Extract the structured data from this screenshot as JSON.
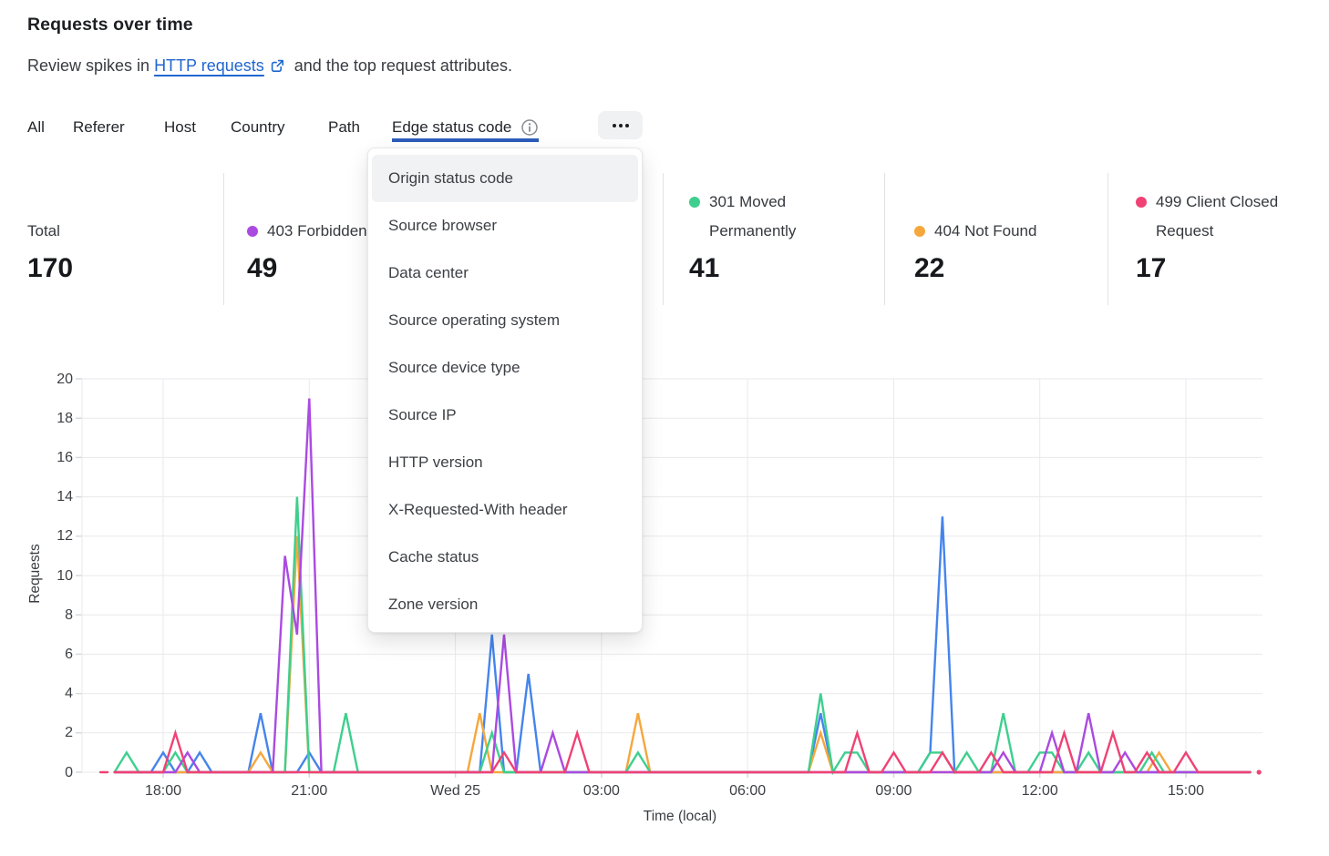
{
  "header": {
    "title": "Requests over time",
    "subtitle_prefix": "Review spikes in ",
    "subtitle_link": "HTTP requests",
    "subtitle_suffix": " and the top request attributes.",
    "link_color": "#2166cf"
  },
  "tabs": {
    "items": [
      {
        "label": "All",
        "active": false
      },
      {
        "label": "Referer",
        "active": false
      },
      {
        "label": "Host",
        "active": false
      },
      {
        "label": "Country",
        "active": false
      },
      {
        "label": "Path",
        "active": false
      },
      {
        "label": "Edge status code",
        "active": true,
        "has_info_icon": true
      }
    ],
    "underline_color": "#2d5cba",
    "more_button": "ellipsis"
  },
  "dropdown": {
    "highlighted_index": 0,
    "items": [
      "Origin status code",
      "Source browser",
      "Data center",
      "Source operating system",
      "Source device type",
      "Source IP",
      "HTTP version",
      "X-Requested-With header",
      "Cache status",
      "Zone version"
    ]
  },
  "stats": {
    "cards": [
      {
        "id": "total",
        "label": "Total",
        "value": "170",
        "dot_color": null
      },
      {
        "id": "403-forbidden",
        "label": "403 Forbidden",
        "value": "49",
        "dot_color": "#ab4ae1"
      },
      {
        "id": "301-moved-permanently",
        "label": "301 Moved Permanently",
        "value": "41",
        "dot_color": "#3ecf8e"
      },
      {
        "id": "404-not-found",
        "label": "404 Not Found",
        "value": "22",
        "dot_color": "#f5a73c"
      },
      {
        "id": "499-client-closed-request",
        "label": "499 Client Closed Request",
        "value": "17",
        "dot_color": "#f04274"
      }
    ]
  },
  "chart_data": {
    "type": "line",
    "title": "Requests over time",
    "x_axis": {
      "label": "Time (local)",
      "unit": "decimal hours, 24 = Wed 25 00:00 local",
      "range": [
        16.34,
        41.0
      ],
      "ticks": [
        {
          "t": 18,
          "label": "18:00"
        },
        {
          "t": 21,
          "label": "21:00"
        },
        {
          "t": 24,
          "label": "Wed 25"
        },
        {
          "t": 27,
          "label": "03:00"
        },
        {
          "t": 30,
          "label": "06:00"
        },
        {
          "t": 33,
          "label": "09:00"
        },
        {
          "t": 36,
          "label": "12:00"
        },
        {
          "t": 39,
          "label": "15:00"
        }
      ]
    },
    "y_axis": {
      "label": "Requests",
      "min": 0,
      "max": 20,
      "tick_step": 2
    },
    "grid": true,
    "interval_hours": 0.25,
    "data_start": 17.0,
    "data_end": 40.32,
    "series": [
      {
        "id": "403-forbidden",
        "label": "403 Forbidden",
        "color": "#ab4ae1",
        "points": [
          [
            17,
            0
          ],
          [
            18.5,
            1
          ],
          [
            20.5,
            11
          ],
          [
            20.75,
            7
          ],
          [
            21,
            19
          ],
          [
            25,
            7
          ],
          [
            26,
            2
          ],
          [
            35.25,
            1
          ],
          [
            36.25,
            2
          ],
          [
            37,
            3
          ],
          [
            37.75,
            1
          ],
          [
            40.32,
            0
          ]
        ]
      },
      {
        "id": "301-moved-permanently",
        "label": "301 Moved Permanently",
        "color": "#3ecf8e",
        "points": [
          [
            17,
            0
          ],
          [
            17.25,
            1
          ],
          [
            18.25,
            1
          ],
          [
            20.75,
            14
          ],
          [
            21.75,
            3
          ],
          [
            24.75,
            2
          ],
          [
            27.75,
            1
          ],
          [
            31.5,
            4
          ],
          [
            32,
            1
          ],
          [
            32.25,
            1
          ],
          [
            33.75,
            1
          ],
          [
            34,
            1
          ],
          [
            34.5,
            1
          ],
          [
            35.25,
            3
          ],
          [
            36,
            1
          ],
          [
            36.25,
            1
          ],
          [
            37,
            1
          ],
          [
            38.3,
            1
          ],
          [
            40.32,
            0
          ]
        ]
      },
      {
        "id": "404-not-found",
        "label": "404 Not Found",
        "color": "#f5a73c",
        "points": [
          [
            17,
            0
          ],
          [
            20,
            1
          ],
          [
            20.75,
            12
          ],
          [
            24.5,
            3
          ],
          [
            27.75,
            3
          ],
          [
            31.5,
            2
          ],
          [
            38.45,
            1
          ],
          [
            40.32,
            0
          ]
        ]
      },
      {
        "id": "499-client-closed-request",
        "label": "499 Client Closed Request",
        "color": "#f04274",
        "points": [
          [
            17,
            0
          ],
          [
            18.25,
            2
          ],
          [
            25,
            1
          ],
          [
            26.5,
            2
          ],
          [
            32.25,
            2
          ],
          [
            33,
            1
          ],
          [
            34,
            1
          ],
          [
            35,
            1
          ],
          [
            36.5,
            2
          ],
          [
            37.5,
            2
          ],
          [
            38.2,
            1
          ],
          [
            39,
            1
          ],
          [
            40.32,
            0
          ]
        ],
        "lead_dash": [
          16.71,
          16.86
        ],
        "end_dot_t": 40.5
      },
      {
        "id": "unlabeled-blue",
        "color": "#4584ec",
        "points": [
          [
            17,
            0
          ],
          [
            18,
            1
          ],
          [
            18.75,
            1
          ],
          [
            20,
            3
          ],
          [
            21,
            1
          ],
          [
            24.75,
            7
          ],
          [
            25.5,
            5
          ],
          [
            31.5,
            3
          ],
          [
            33.75,
            1
          ],
          [
            34,
            13
          ],
          [
            40.32,
            0
          ]
        ]
      }
    ],
    "draw_order": [
      "unlabeled-blue",
      "404-not-found",
      "301-moved-permanently",
      "403-forbidden",
      "499-client-closed-request"
    ]
  }
}
